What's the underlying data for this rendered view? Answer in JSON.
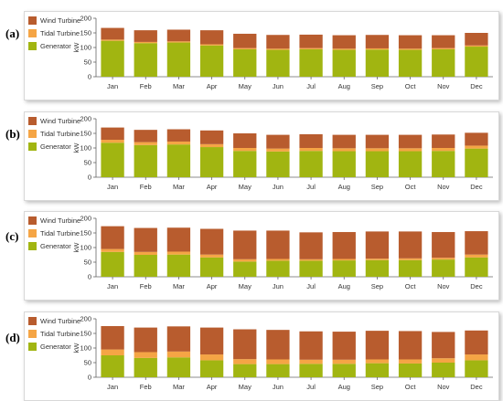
{
  "legend_colors": {
    "Wind Turbine": "#b85c2e",
    "Tidal Turbine": "#f5a545",
    "Generator": "#a1b511"
  },
  "chart_data": [
    {
      "panel_label": "(a)",
      "type": "bar",
      "stacked": true,
      "ylabel": "kW",
      "ylim": [
        0,
        200
      ],
      "yticks": [
        "0",
        "50",
        "100",
        "150",
        "200"
      ],
      "categories": [
        "Jan",
        "Feb",
        "Mar",
        "Apr",
        "May",
        "Jun",
        "Jul",
        "Aug",
        "Sep",
        "Oct",
        "Nov",
        "Dec"
      ],
      "series": [
        {
          "name": "Generator",
          "values": [
            123,
            115,
            117,
            107,
            94,
            92,
            94,
            92,
            93,
            92,
            94,
            103
          ]
        },
        {
          "name": "Tidal Turbine",
          "values": [
            4,
            4,
            4,
            4,
            4,
            4,
            4,
            4,
            4,
            4,
            4,
            4
          ]
        },
        {
          "name": "Wind Turbine",
          "values": [
            40,
            40,
            40,
            48,
            49,
            47,
            46,
            46,
            46,
            46,
            44,
            43
          ]
        }
      ],
      "legend": "top-left",
      "grid": false
    },
    {
      "panel_label": "(b)",
      "type": "bar",
      "stacked": true,
      "ylabel": "kW",
      "ylim": [
        0,
        200
      ],
      "yticks": [
        "0",
        "50",
        "100",
        "150",
        "200"
      ],
      "categories": [
        "Jan",
        "Feb",
        "Mar",
        "Apr",
        "May",
        "Jun",
        "Jul",
        "Aug",
        "Sep",
        "Oct",
        "Nov",
        "Dec"
      ],
      "series": [
        {
          "name": "Generator",
          "values": [
            118,
            110,
            112,
            103,
            90,
            88,
            90,
            89,
            89,
            89,
            90,
            98
          ]
        },
        {
          "name": "Tidal Turbine",
          "values": [
            10,
            10,
            10,
            10,
            10,
            10,
            10,
            10,
            10,
            10,
            10,
            10
          ]
        },
        {
          "name": "Wind Turbine",
          "values": [
            42,
            42,
            42,
            47,
            50,
            47,
            47,
            46,
            46,
            46,
            46,
            44
          ]
        }
      ],
      "legend": "top-left",
      "grid": false
    },
    {
      "panel_label": "(c)",
      "type": "bar",
      "stacked": true,
      "ylabel": "kW",
      "ylim": [
        0,
        200
      ],
      "yticks": [
        "0",
        "50",
        "100",
        "150",
        "200"
      ],
      "categories": [
        "Jan",
        "Feb",
        "Mar",
        "Apr",
        "May",
        "Jun",
        "Jul",
        "Aug",
        "Sep",
        "Oct",
        "Nov",
        "Dec"
      ],
      "series": [
        {
          "name": "Generator",
          "values": [
            85,
            75,
            76,
            66,
            52,
            55,
            55,
            56,
            57,
            57,
            59,
            66
          ]
        },
        {
          "name": "Tidal Turbine",
          "values": [
            10,
            10,
            10,
            10,
            8,
            6,
            5,
            5,
            5,
            6,
            6,
            10
          ]
        },
        {
          "name": "Wind Turbine",
          "values": [
            78,
            82,
            82,
            88,
            98,
            97,
            92,
            92,
            93,
            92,
            88,
            80
          ]
        }
      ],
      "legend": "top-left",
      "grid": false
    },
    {
      "panel_label": "(d)",
      "type": "bar",
      "stacked": true,
      "ylabel": "kW",
      "ylim": [
        0,
        200
      ],
      "yticks": [
        "0",
        "50",
        "100",
        "150",
        "200"
      ],
      "categories": [
        "Jan",
        "Feb",
        "Mar",
        "Apr",
        "May",
        "Jun",
        "Jul",
        "Aug",
        "Sep",
        "Oct",
        "Nov",
        "Dec"
      ],
      "series": [
        {
          "name": "Generator",
          "values": [
            75,
            66,
            68,
            58,
            45,
            45,
            46,
            46,
            48,
            47,
            50,
            58
          ]
        },
        {
          "name": "Tidal Turbine",
          "values": [
            20,
            20,
            20,
            20,
            17,
            16,
            14,
            14,
            13,
            14,
            15,
            20
          ]
        },
        {
          "name": "Wind Turbine",
          "values": [
            80,
            84,
            86,
            92,
            102,
            101,
            97,
            96,
            98,
            97,
            90,
            82
          ]
        }
      ],
      "legend": "top-left",
      "grid": false
    }
  ]
}
